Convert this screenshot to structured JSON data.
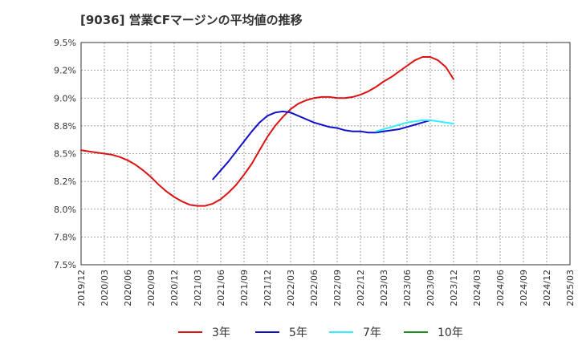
{
  "chart_data": {
    "type": "line",
    "title": "[9036]  営業CFマージンの平均値の推移",
    "xlabel": "",
    "ylabel": "",
    "ylim": [
      7.5,
      9.5
    ],
    "y_ticks": [
      "9.5%",
      "9.2%",
      "9.0%",
      "8.8%",
      "8.5%",
      "8.2%",
      "8.0%",
      "7.8%",
      "7.5%"
    ],
    "y_tick_values": [
      9.5,
      9.25,
      9.0,
      8.75,
      8.5,
      8.25,
      8.0,
      7.75,
      7.5
    ],
    "x_ticks": [
      "2019/12",
      "2020/03",
      "2020/06",
      "2020/09",
      "2020/12",
      "2021/03",
      "2021/06",
      "2021/09",
      "2021/12",
      "2022/03",
      "2022/06",
      "2022/09",
      "2022/12",
      "2023/03",
      "2023/06",
      "2023/09",
      "2023/12",
      "2024/03",
      "2024/06",
      "2024/09",
      "2024/12",
      "2025/03"
    ],
    "grid": true,
    "legend_position": "bottom",
    "series": [
      {
        "name": "3年",
        "color": "#dd1111",
        "start_index": 0,
        "values": [
          8.53,
          8.52,
          8.51,
          8.5,
          8.49,
          8.47,
          8.44,
          8.4,
          8.35,
          8.29,
          8.22,
          8.16,
          8.11,
          8.07,
          8.04,
          8.03,
          8.03,
          8.05,
          8.09,
          8.15,
          8.22,
          8.31,
          8.41,
          8.53,
          8.65,
          8.75,
          8.83,
          8.9,
          8.95,
          8.98,
          9.0,
          9.01,
          9.01,
          9.0,
          9.0,
          9.01,
          9.03,
          9.06,
          9.1,
          9.15,
          9.19,
          9.24,
          9.29,
          9.34,
          9.37,
          9.37,
          9.34,
          9.28,
          9.17
        ]
      },
      {
        "name": "5年",
        "color": "#1111cc",
        "start_index": 17,
        "values": [
          8.27,
          8.35,
          8.43,
          8.52,
          8.61,
          8.7,
          8.78,
          8.84,
          8.87,
          8.88,
          8.87,
          8.84,
          8.81,
          8.78,
          8.76,
          8.74,
          8.73,
          8.71,
          8.7,
          8.7,
          8.69,
          8.69,
          8.7,
          8.71,
          8.72,
          8.74,
          8.76,
          8.78,
          8.8
        ]
      },
      {
        "name": "7年",
        "color": "#33eeff",
        "start_index": 38,
        "values": [
          8.7,
          8.72,
          8.74,
          8.76,
          8.78,
          8.79,
          8.8,
          8.8,
          8.79,
          8.78,
          8.77
        ]
      },
      {
        "name": "10年",
        "color": "#228822",
        "start_index": 0,
        "values": []
      }
    ]
  }
}
